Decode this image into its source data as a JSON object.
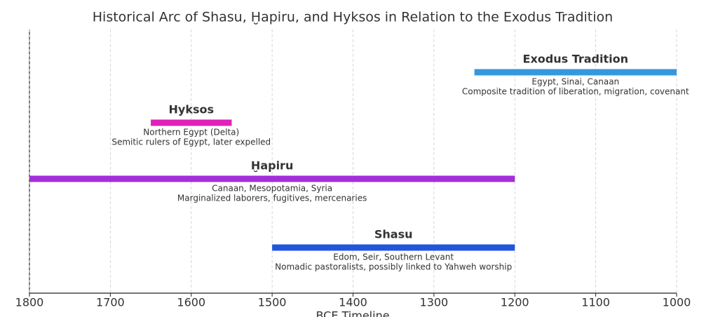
{
  "chart_data": {
    "type": "timeline",
    "title": "Historical Arc of Shasu, Ḫapiru, and Hyksos in Relation to the Exodus Tradition",
    "xlabel": "BCE Timeline",
    "xlim": [
      1800,
      1000
    ],
    "xticks": [
      1800,
      1700,
      1600,
      1500,
      1400,
      1300,
      1200,
      1100,
      1000
    ],
    "grid": true,
    "series": [
      {
        "name": "Shasu",
        "start": 1500,
        "end": 1200,
        "color": "#2255dd",
        "region": "Edom, Seir, Southern Levant",
        "description": "Nomadic pastoralists, possibly linked to Yahweh worship"
      },
      {
        "name": "Ḫapiru",
        "start": 1800,
        "end": 1200,
        "color": "#a22fd9",
        "region": "Canaan, Mesopotamia, Syria",
        "description": "Marginalized laborers, fugitives, mercenaries"
      },
      {
        "name": "Hyksos",
        "start": 1650,
        "end": 1550,
        "color": "#e020b8",
        "region": "Northern Egypt (Delta)",
        "description": "Semitic rulers of Egypt, later expelled"
      },
      {
        "name": "Exodus Tradition",
        "start": 1250,
        "end": 1000,
        "color": "#3399dd",
        "region": "Egypt, Sinai, Canaan",
        "description": "Composite tradition of liberation, migration, covenant"
      }
    ]
  }
}
